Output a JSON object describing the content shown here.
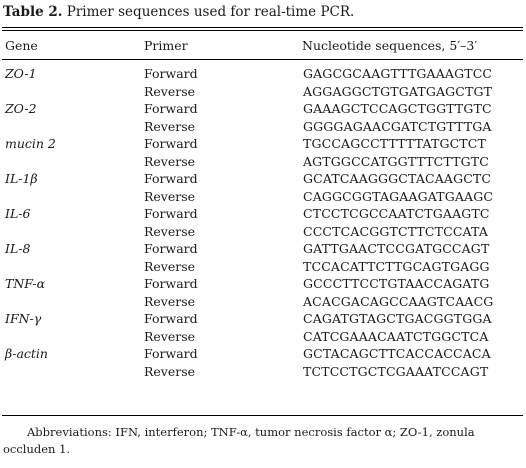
{
  "caption": {
    "label": "Table 2.",
    "text": " Primer sequences used for real-time PCR."
  },
  "header": {
    "gene": "Gene",
    "primer": "Primer",
    "sequence": "Nucleotide sequences, 5′–3′"
  },
  "rows": [
    {
      "gene": "ZO-1",
      "primer": "Forward",
      "seq": "GAGCGCAAGTTTGAAAGTCC"
    },
    {
      "gene": "",
      "primer": "Reverse",
      "seq": "AGGAGGCTGTGATGAGCTGT"
    },
    {
      "gene": "ZO-2",
      "primer": "Forward",
      "seq": "GAAAGCTCCAGCTGGTTGTC"
    },
    {
      "gene": "",
      "primer": "Reverse",
      "seq": "GGGGAGAACGATCTGTTTGA"
    },
    {
      "gene": "mucin 2",
      "primer": "Forward",
      "seq": "TGCCAGCCTTTTTATGCTCT"
    },
    {
      "gene": "",
      "primer": "Reverse",
      "seq": "AGTGGCCATGGTTTCTTGTC"
    },
    {
      "gene": "IL-1β",
      "primer": "Forward",
      "seq": "GCATCAAGGGCTACAAGCTC"
    },
    {
      "gene": "",
      "primer": "Reverse",
      "seq": "CAGGCGGTAGAAGATGAAGC"
    },
    {
      "gene": "IL-6",
      "primer": "Forward",
      "seq": "CTCCTCGCCAATCTGAAGTC"
    },
    {
      "gene": "",
      "primer": "Reverse",
      "seq": "CCCTCACGGTCTTCTCCATA"
    },
    {
      "gene": "IL-8",
      "primer": "Forward",
      "seq": "GATTGAACTCCGATGCCAGT"
    },
    {
      "gene": "",
      "primer": "Reverse",
      "seq": "TCCACATTCTTGCAGTGAGG"
    },
    {
      "gene": "TNF-α",
      "primer": "Forward",
      "seq": "GCCCTTCCTGTAACCAGATG"
    },
    {
      "gene": "",
      "primer": "Reverse",
      "seq": "ACACGACAGCCAAGTCAACG"
    },
    {
      "gene": "IFN-γ",
      "primer": "Forward",
      "seq": "CAGATGTAGCTGACGGTGGA"
    },
    {
      "gene": "",
      "primer": "Reverse",
      "seq": "CATCGAAACAATCTGGCTCA"
    },
    {
      "gene": "β-actin",
      "primer": "Forward",
      "seq": "GCTACAGCTTCACCACCACA"
    },
    {
      "gene": "",
      "primer": "Reverse",
      "seq": "TCTCCTGCTCGAAATCCAGT"
    }
  ],
  "footnote": "Abbreviations: IFN, interferon; TNF-α, tumor necrosis factor α; ZO-1, zonula occluden 1."
}
